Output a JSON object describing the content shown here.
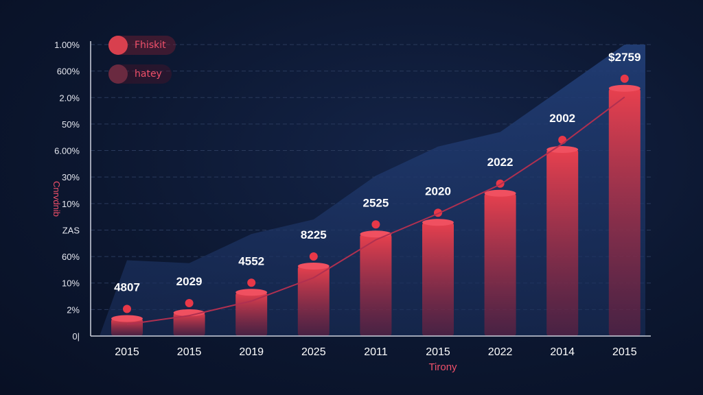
{
  "chart_data": {
    "type": "bar",
    "title": "",
    "xlabel": "Tirony",
    "ylabel": "Cnrvdnib",
    "categories": [
      "2015",
      "2015",
      "2019",
      "2025",
      "2011",
      "2015",
      "2022",
      "2014",
      "2015"
    ],
    "values": [
      6,
      8,
      15,
      24,
      35,
      39,
      49,
      64,
      85
    ],
    "data_labels": [
      "4807",
      "2029",
      "4552",
      "8225",
      "2525",
      "2020",
      "2022",
      "2002",
      "$2759"
    ],
    "trend_line": [
      4,
      7,
      12,
      20,
      33,
      42,
      52,
      66,
      82
    ],
    "area": [
      26,
      25,
      35,
      40,
      55,
      65,
      70,
      85,
      100
    ],
    "y_tick_labels": [
      "0|",
      "2%",
      "10%",
      "60%",
      "ZAS",
      "10%",
      "30%",
      "6.00%",
      "50%",
      "2.0%",
      "600%",
      "1.00%"
    ],
    "ylim": [
      0,
      100
    ],
    "grid": true,
    "legend": [
      {
        "label": "Fhiskit",
        "color": "#e0404e"
      },
      {
        "label": "hatey",
        "color": "#7a2a3e"
      }
    ],
    "legend_placement": "top-left",
    "colors": {
      "bar": "#e0404e",
      "area": "#1e3a6e",
      "line": "#b03050",
      "text": "#ffffff",
      "accent": "#f0506a"
    }
  }
}
